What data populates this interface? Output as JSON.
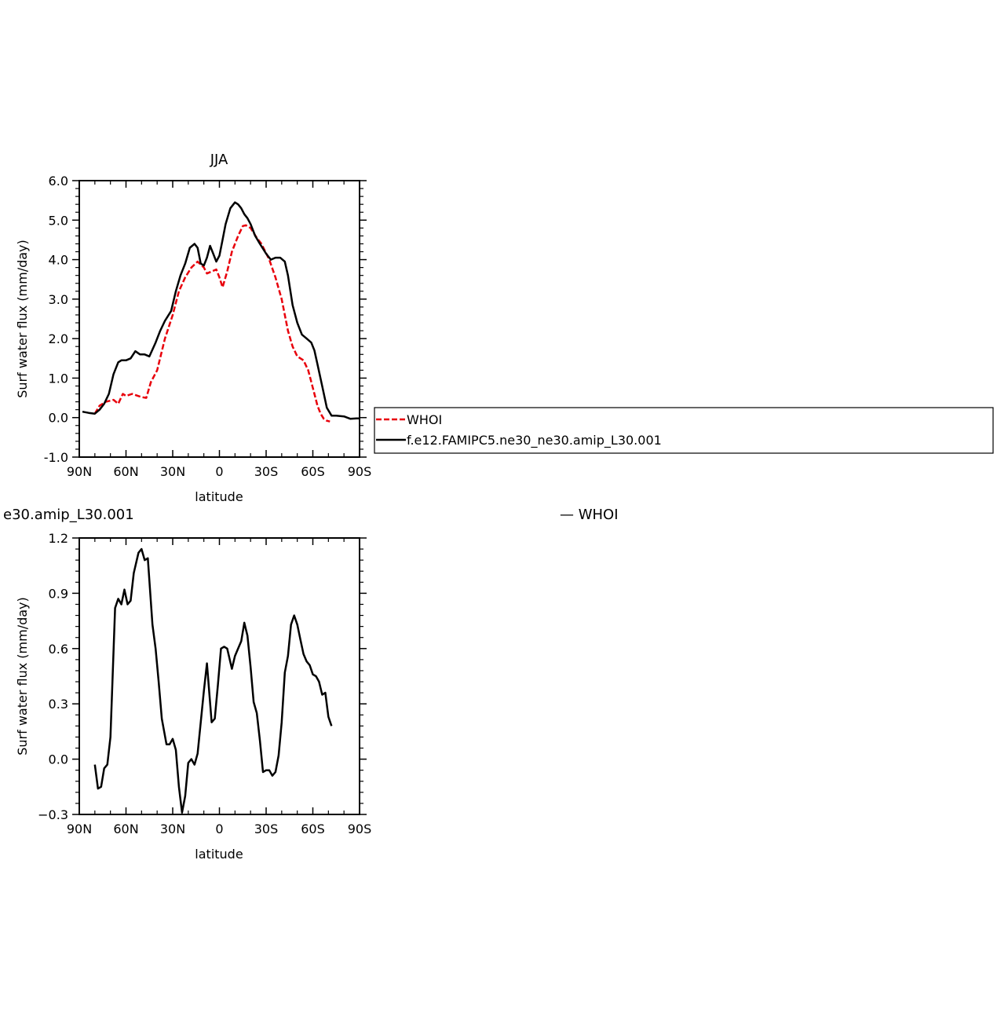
{
  "chart_data": [
    {
      "type": "line",
      "title": "JJA",
      "xlabel": "latitude",
      "ylabel": "Surf water flux (mm/day)",
      "xlim": [
        90,
        -90
      ],
      "ylim": [
        -1.0,
        6.0
      ],
      "x_ticks": [
        90,
        60,
        30,
        0,
        -30,
        -60,
        -90
      ],
      "x_tick_labels": [
        "90N",
        "60N",
        "30N",
        "0",
        "30S",
        "60S",
        "90S"
      ],
      "y_ticks": [
        -1.0,
        0.0,
        1.0,
        2.0,
        3.0,
        4.0,
        5.0,
        6.0
      ],
      "y_tick_labels": [
        "-1.0",
        "0.0",
        "1.0",
        "2.0",
        "3.0",
        "4.0",
        "5.0",
        "6.0"
      ],
      "legend": {
        "placement": "right",
        "entries": [
          "WHOI",
          "f.e12.FAMIPC5.ne30_ne30.amip_L30.001"
        ]
      },
      "series": [
        {
          "name": "WHOI",
          "color": "#e8000b",
          "dash": "dashed",
          "x": [
            80,
            77,
            73,
            68,
            65,
            62,
            60,
            56,
            50,
            47,
            44,
            40,
            35,
            30,
            26,
            22,
            18,
            14,
            10,
            8,
            5,
            2,
            0,
            -2,
            -5,
            -8,
            -12,
            -15,
            -17,
            -20,
            -24,
            -27,
            -32,
            -36,
            -40,
            -44,
            -47,
            -50,
            -54,
            -57,
            -61,
            -63,
            -65,
            -67,
            -69,
            -71
          ],
          "values": [
            0.1,
            0.3,
            0.4,
            0.45,
            0.35,
            0.6,
            0.55,
            0.6,
            0.52,
            0.5,
            0.9,
            1.2,
            2.0,
            2.6,
            3.2,
            3.55,
            3.8,
            3.95,
            3.8,
            3.65,
            3.7,
            3.75,
            3.55,
            3.3,
            3.7,
            4.2,
            4.6,
            4.85,
            4.87,
            4.8,
            4.55,
            4.4,
            4.0,
            3.55,
            3.0,
            2.2,
            1.8,
            1.55,
            1.45,
            1.2,
            0.6,
            0.3,
            0.1,
            -0.03,
            -0.08,
            -0.1
          ]
        },
        {
          "name": "f.e12.FAMIPC5.ne30_ne30.amip_L30.001",
          "color": "#000000",
          "dash": "solid",
          "x": [
            88,
            84,
            80,
            77,
            74,
            71,
            68,
            65,
            63,
            60,
            57,
            54,
            51,
            48,
            45,
            41,
            38,
            35,
            31,
            28,
            25,
            22,
            19,
            16,
            14,
            12,
            10,
            8,
            6,
            4,
            2,
            0,
            -2,
            -4,
            -7,
            -10,
            -12,
            -14,
            -16,
            -18,
            -20,
            -23,
            -26,
            -30,
            -33,
            -36,
            -39,
            -42,
            -44,
            -47,
            -50,
            -53,
            -56,
            -59,
            -61,
            -63,
            -66,
            -69,
            -72,
            -75,
            -80,
            -84,
            -88,
            -90
          ],
          "values": [
            0.15,
            0.12,
            0.1,
            0.2,
            0.35,
            0.6,
            1.1,
            1.4,
            1.45,
            1.45,
            1.5,
            1.68,
            1.6,
            1.6,
            1.55,
            1.9,
            2.2,
            2.45,
            2.7,
            3.2,
            3.6,
            3.9,
            4.3,
            4.4,
            4.3,
            3.9,
            3.85,
            4.05,
            4.35,
            4.15,
            3.95,
            4.1,
            4.5,
            4.9,
            5.3,
            5.45,
            5.4,
            5.3,
            5.15,
            5.05,
            4.9,
            4.6,
            4.4,
            4.15,
            4.0,
            4.05,
            4.05,
            3.95,
            3.6,
            2.85,
            2.4,
            2.1,
            2.0,
            1.9,
            1.7,
            1.35,
            0.8,
            0.25,
            0.05,
            0.05,
            0.03,
            -0.03,
            -0.02,
            -0.02
          ]
        }
      ]
    },
    {
      "type": "line",
      "title": "e30.amip_L30.001",
      "subtitle": "— WHOI",
      "xlabel": "latitude",
      "ylabel": "Surf water flux (mm/day)",
      "xlim": [
        90,
        -90
      ],
      "ylim": [
        -0.3,
        1.2
      ],
      "x_ticks": [
        90,
        60,
        30,
        0,
        -30,
        -60,
        -90
      ],
      "x_tick_labels": [
        "90N",
        "60N",
        "30N",
        "0",
        "30S",
        "60S",
        "90S"
      ],
      "y_ticks": [
        -0.3,
        0.0,
        0.3,
        0.6,
        0.9,
        1.2
      ],
      "y_tick_labels": [
        "−0.3",
        "0.0",
        "0.3",
        "0.6",
        "0.9",
        "1.2"
      ],
      "series": [
        {
          "color": "#000000",
          "dash": "solid",
          "x": [
            80,
            78,
            76,
            74,
            72,
            70,
            67,
            65,
            63,
            61,
            59,
            57,
            55,
            52,
            50,
            48,
            46,
            43,
            41,
            39,
            37,
            34,
            32,
            30,
            28,
            26,
            24,
            22,
            20,
            18,
            16,
            14,
            12,
            10,
            8,
            5,
            3,
            1,
            -1,
            -3,
            -5,
            -8,
            -10,
            -12,
            -14,
            -16,
            -18,
            -20,
            -22,
            -24,
            -26,
            -28,
            -30,
            -32,
            -34,
            -36,
            -38,
            -40,
            -42,
            -44,
            -46,
            -48,
            -50,
            -52,
            -54,
            -56,
            -58,
            -60,
            -62,
            -64,
            -66,
            -68,
            -70,
            -72
          ],
          "values": [
            -0.03,
            -0.16,
            -0.15,
            -0.05,
            -0.03,
            0.12,
            0.82,
            0.87,
            0.84,
            0.92,
            0.84,
            0.86,
            1.01,
            1.12,
            1.14,
            1.08,
            1.09,
            0.73,
            0.6,
            0.42,
            0.22,
            0.08,
            0.08,
            0.11,
            0.05,
            -0.15,
            -0.29,
            -0.2,
            -0.02,
            0.0,
            -0.03,
            0.03,
            0.2,
            0.37,
            0.52,
            0.2,
            0.22,
            0.4,
            0.6,
            0.61,
            0.6,
            0.49,
            0.56,
            0.6,
            0.64,
            0.74,
            0.67,
            0.5,
            0.31,
            0.25,
            0.1,
            -0.07,
            -0.06,
            -0.06,
            -0.09,
            -0.07,
            0.02,
            0.2,
            0.47,
            0.56,
            0.73,
            0.78,
            0.73,
            0.65,
            0.57,
            0.53,
            0.51,
            0.46,
            0.45,
            0.42,
            0.35,
            0.36,
            0.23,
            0.18
          ]
        }
      ]
    }
  ]
}
